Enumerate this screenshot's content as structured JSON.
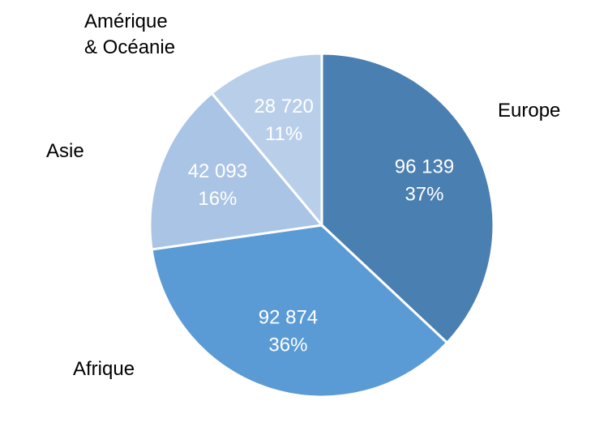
{
  "chart_data": {
    "type": "pie",
    "categories": [
      "Europe",
      "Afrique",
      "Asie",
      "Amérique\n& Océanie"
    ],
    "values": [
      96139,
      92874,
      42093,
      28720
    ],
    "value_labels": [
      "96 139",
      "92 874",
      "42 093",
      "28 720"
    ],
    "percentages": [
      37,
      36,
      16,
      11
    ],
    "percentage_labels": [
      "37%",
      "36%",
      "16%",
      "11%"
    ],
    "colors": [
      "#4a7fb1",
      "#5b9bd5",
      "#a9c4e4",
      "#b9cfe9"
    ]
  }
}
